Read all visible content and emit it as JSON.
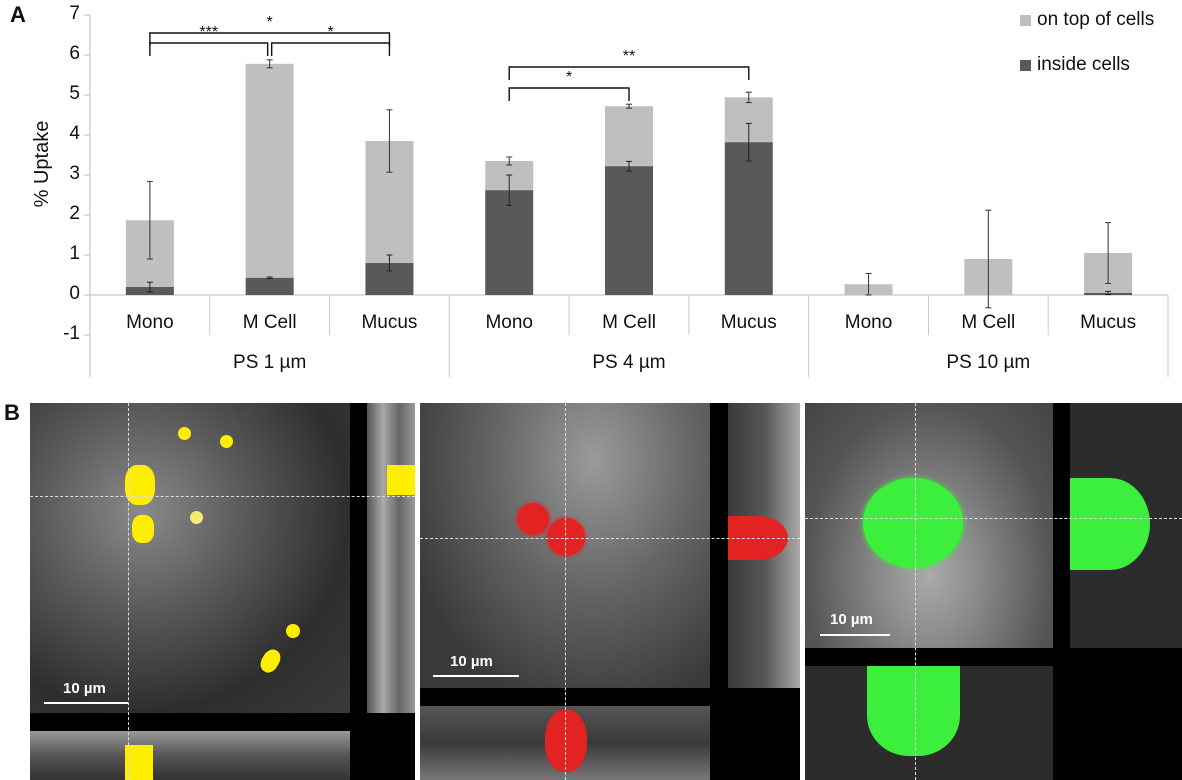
{
  "panels": {
    "a_label": "A",
    "b_label": "B"
  },
  "chart_data": {
    "type": "bar",
    "stacked": true,
    "title": "",
    "xlabel": "",
    "ylabel": "% Uptake",
    "ylim": [
      -1,
      7
    ],
    "yticks": [
      "7",
      "6",
      "5",
      "4",
      "3",
      "2",
      "1",
      "0",
      "-1"
    ],
    "grid": false,
    "legend_position": "top-right",
    "groups": [
      "PS 1 µm",
      "PS 4 µm",
      "PS 10 µm"
    ],
    "categories": [
      "Mono",
      "M Cell",
      "Mucus",
      "Mono",
      "M Cell",
      "Mucus",
      "Mono",
      "M Cell",
      "Mucus"
    ],
    "series": [
      {
        "name": "inside cells",
        "color": "#595959",
        "values": [
          0.2,
          0.43,
          0.8,
          2.62,
          3.22,
          3.82,
          0.0,
          0.0,
          0.05
        ],
        "error": [
          0.12,
          0.02,
          0.2,
          0.38,
          0.12,
          0.47,
          0.0,
          0.0,
          0.04
        ]
      },
      {
        "name": "on top of cells",
        "color": "#bfbfbf",
        "values": [
          1.67,
          5.35,
          3.05,
          0.73,
          1.5,
          1.12,
          0.27,
          0.9,
          1.0
        ],
        "totals": [
          1.87,
          5.78,
          3.85,
          3.35,
          4.72,
          4.94,
          0.27,
          0.9,
          1.05
        ],
        "error": [
          0.97,
          0.1,
          0.78,
          0.1,
          0.05,
          0.13,
          0.27,
          1.22,
          0.76
        ]
      }
    ],
    "significance": [
      {
        "from": 0,
        "to": 2,
        "label": "*"
      },
      {
        "from": 0,
        "to": 1,
        "label": "***"
      },
      {
        "from": 1,
        "to": 2,
        "label": "*"
      },
      {
        "from": 3,
        "to": 5,
        "label": "**"
      },
      {
        "from": 3,
        "to": 4,
        "label": "*"
      }
    ]
  },
  "legend": [
    {
      "label": "on top of cells",
      "color": "#bfbfbf"
    },
    {
      "label": "inside cells",
      "color": "#595959"
    }
  ],
  "micrographs": [
    {
      "particle": "yellow",
      "color": "#ffee00",
      "scale_bar": "10 µm"
    },
    {
      "particle": "red",
      "color": "#ee2222",
      "scale_bar": "10 µm"
    },
    {
      "particle": "green",
      "color": "#33ee33",
      "scale_bar": "10 µm"
    }
  ]
}
